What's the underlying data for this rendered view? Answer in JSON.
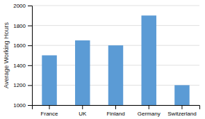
{
  "chart_data": {
    "type": "bar",
    "categories": [
      "France",
      "UK",
      "Finland",
      "Germany",
      "Switzerland"
    ],
    "values": [
      1500,
      1650,
      1600,
      1900,
      1200
    ],
    "color": "#5b9bd5",
    "ylabel": "Average Working Hours",
    "ylim": [
      1000,
      2000
    ],
    "yticks": [
      1000,
      1200,
      1400,
      1600,
      1800,
      2000
    ],
    "grid": true
  }
}
